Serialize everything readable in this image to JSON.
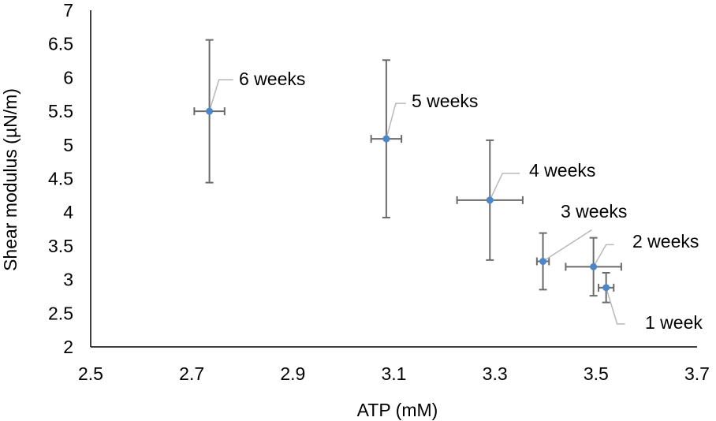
{
  "chart_data": {
    "type": "scatter",
    "title": "",
    "xlabel": "ATP (mM)",
    "ylabel": "Shear modulus (µN/m)",
    "xlim": [
      2.5,
      3.7
    ],
    "ylim": [
      2,
      7
    ],
    "xticks": [
      2.5,
      2.7,
      2.9,
      3.1,
      3.3,
      3.5,
      3.7
    ],
    "yticks": [
      2,
      2.5,
      3,
      3.5,
      4,
      4.5,
      5,
      5.5,
      6,
      6.5,
      7
    ],
    "xtick_labels": [
      "2.5",
      "2.7",
      "2.9",
      "3.1",
      "3.3",
      "3.5",
      "3.7"
    ],
    "ytick_labels": [
      "2",
      "2.5",
      "3",
      "3.5",
      "4",
      "4.5",
      "5",
      "5.5",
      "6",
      "6.5",
      "7"
    ],
    "grid": false,
    "legend": "none",
    "marker_color": "#4a86c8",
    "error_bar_color": "#6b6b6b",
    "points": [
      {
        "label": "1 week",
        "x": 3.52,
        "y": 2.88,
        "xerr": 0.015,
        "yerr": 0.22
      },
      {
        "label": "2 weeks",
        "x": 3.495,
        "y": 3.19,
        "xerr": 0.055,
        "yerr": 0.43
      },
      {
        "label": "3 weeks",
        "x": 3.395,
        "y": 3.27,
        "xerr": 0.012,
        "yerr": 0.42
      },
      {
        "label": "4 weeks",
        "x": 3.29,
        "y": 4.18,
        "xerr": 0.065,
        "yerr": 0.89
      },
      {
        "label": "5 weeks",
        "x": 3.085,
        "y": 5.09,
        "xerr": 0.03,
        "yerr": 1.17
      },
      {
        "label": "6 weeks",
        "x": 2.735,
        "y": 5.5,
        "xerr": 0.03,
        "yerr": 1.06
      }
    ]
  }
}
